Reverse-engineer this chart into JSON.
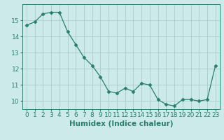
{
  "x": [
    0,
    1,
    2,
    3,
    4,
    5,
    6,
    7,
    8,
    9,
    10,
    11,
    12,
    13,
    14,
    15,
    16,
    17,
    18,
    19,
    20,
    21,
    22,
    23
  ],
  "y": [
    14.7,
    14.9,
    15.4,
    15.5,
    15.5,
    14.3,
    13.5,
    12.7,
    12.2,
    11.5,
    10.6,
    10.5,
    10.8,
    10.6,
    11.1,
    11.0,
    10.1,
    9.8,
    9.7,
    10.1,
    10.1,
    10.0,
    10.1,
    12.2
  ],
  "line_color": "#2a7d6e",
  "marker": "D",
  "marker_size": 2.5,
  "bg_color": "#cceaea",
  "grid_color": "#aacccc",
  "xlabel": "Humidex (Indice chaleur)",
  "xlabel_fontsize": 7.5,
  "tick_fontsize": 6.5,
  "ylim": [
    9.5,
    16.0
  ],
  "xlim": [
    -0.5,
    23.5
  ],
  "yticks": [
    10,
    11,
    12,
    13,
    14,
    15
  ],
  "xticks": [
    0,
    1,
    2,
    3,
    4,
    5,
    6,
    7,
    8,
    9,
    10,
    11,
    12,
    13,
    14,
    15,
    16,
    17,
    18,
    19,
    20,
    21,
    22,
    23
  ]
}
